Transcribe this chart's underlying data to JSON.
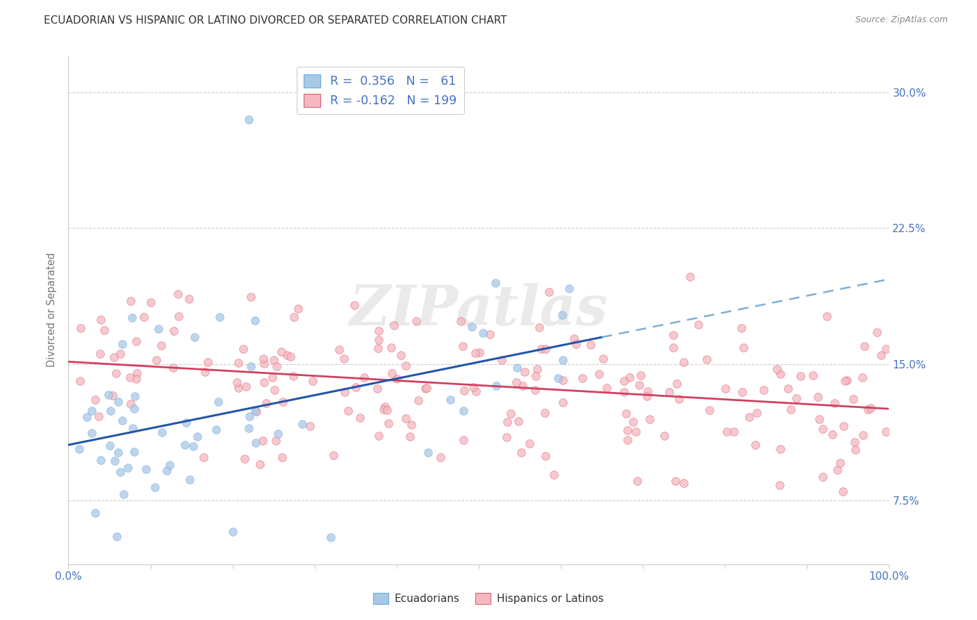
{
  "title": "ECUADORIAN VS HISPANIC OR LATINO DIVORCED OR SEPARATED CORRELATION CHART",
  "source": "Source: ZipAtlas.com",
  "ylabel": "Divorced or Separated",
  "ytick_labels": [
    "7.5%",
    "15.0%",
    "22.5%",
    "30.0%"
  ],
  "ytick_values": [
    0.075,
    0.15,
    0.225,
    0.3
  ],
  "xlim": [
    0.0,
    1.0
  ],
  "ylim": [
    0.04,
    0.32
  ],
  "watermark": "ZIPatlas",
  "blue_color": "#A8C8E8",
  "blue_edge_color": "#6FA8DC",
  "pink_color": "#F4B8C0",
  "pink_edge_color": "#E06070",
  "trend_blue_solid": "#2255AA",
  "trend_blue_dashed": "#7BAFD4",
  "trend_pink": "#D04060",
  "background_color": "#FFFFFF",
  "grid_color": "#CCCCCC",
  "title_color": "#333333",
  "source_color": "#888888",
  "axis_color": "#4472C4",
  "ylabel_color": "#777777",
  "legend_edge_color": "#CCCCCC",
  "watermark_color": "#DDDDDD"
}
